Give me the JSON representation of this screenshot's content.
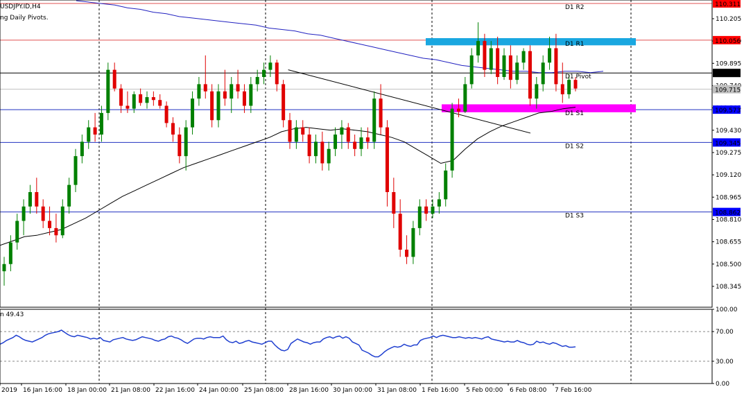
{
  "window": {
    "symbol_title": "USDJPY.ID,H4",
    "indicator_title": "ng Daily Pivots.",
    "rsi_title": "n 49.43"
  },
  "colors": {
    "background": "#ffffff",
    "bull": "#008000",
    "bear": "#e00000",
    "ma_long": "#2020c0",
    "ma_short": "#000000",
    "rsi": "#1f3fd0",
    "r_lines": "#e05050",
    "pivot_line": "#000000",
    "s_lines": "#2030c0",
    "zone_resistance": "#1aa7e0",
    "zone_support": "#ff00ff",
    "label_pivot_bg": "#000080",
    "label_r_bg": "#ff0000",
    "label_s_bg": "#0000ff"
  },
  "chart_data": [
    {
      "type": "candlestick",
      "title": "USDJPY.ID,H4",
      "ylim": [
        108.2,
        110.335
      ],
      "y_ticks": [
        "110.205",
        "110.050",
        "109.895",
        "109.740",
        "109.585",
        "109.430",
        "109.275",
        "109.120",
        "108.965",
        "108.810",
        "108.655",
        "108.500",
        "108.345"
      ],
      "x_labels": [
        "2019",
        "16 Jan 16:00",
        "18 Jan 00:00",
        "21 Jan 08:00",
        "22 Jan 16:00",
        "24 Jan 00:00",
        "25 Jan 08:00",
        "28 Jan 16:00",
        "30 Jan 00:00",
        "31 Jan 08:00",
        "1 Feb 16:00",
        "5 Feb 00:00",
        "6 Feb 08:00",
        "7 Feb 16:00"
      ],
      "levels": [
        {
          "name": "D1 R2",
          "value": 110.311,
          "price_label": "110.311",
          "kind": "r"
        },
        {
          "name": "D1 R1",
          "value": 110.056,
          "price_label": "110.056",
          "kind": "r"
        },
        {
          "name": "D1 Pivot",
          "value": 109.828,
          "price_label": "109.828",
          "kind": "pivot"
        },
        {
          "name": "D1 S1",
          "value": 109.573,
          "price_label": "109.573",
          "kind": "s"
        },
        {
          "name": "D1 S2",
          "value": 109.345,
          "price_label": "109.345",
          "kind": "s"
        },
        {
          "name": "D1 S3",
          "value": 108.862,
          "price_label": "108.862",
          "kind": "s"
        }
      ],
      "current_price": {
        "value": 109.715,
        "label": "109.715"
      },
      "zones": [
        {
          "kind": "resistance",
          "from": 110.02,
          "to": 110.07
        },
        {
          "kind": "support",
          "from": 109.555,
          "to": 109.61
        }
      ],
      "candles": [
        {
          "o": 108.45,
          "h": 108.55,
          "l": 108.35,
          "c": 108.5
        },
        {
          "o": 108.5,
          "h": 108.7,
          "l": 108.45,
          "c": 108.65
        },
        {
          "o": 108.65,
          "h": 108.85,
          "l": 108.6,
          "c": 108.8
        },
        {
          "o": 108.8,
          "h": 108.95,
          "l": 108.7,
          "c": 108.9
        },
        {
          "o": 108.9,
          "h": 109.05,
          "l": 108.85,
          "c": 109.0
        },
        {
          "o": 109.0,
          "h": 109.1,
          "l": 108.85,
          "c": 108.9
        },
        {
          "o": 108.9,
          "h": 108.95,
          "l": 108.75,
          "c": 108.8
        },
        {
          "o": 108.8,
          "h": 108.9,
          "l": 108.7,
          "c": 108.75
        },
        {
          "o": 108.75,
          "h": 108.85,
          "l": 108.65,
          "c": 108.7
        },
        {
          "o": 108.7,
          "h": 108.95,
          "l": 108.68,
          "c": 108.9
        },
        {
          "o": 108.9,
          "h": 109.1,
          "l": 108.85,
          "c": 109.05
        },
        {
          "o": 109.05,
          "h": 109.3,
          "l": 109.0,
          "c": 109.25
        },
        {
          "o": 109.25,
          "h": 109.4,
          "l": 109.2,
          "c": 109.35
        },
        {
          "o": 109.35,
          "h": 109.5,
          "l": 109.3,
          "c": 109.45
        },
        {
          "o": 109.45,
          "h": 109.55,
          "l": 109.35,
          "c": 109.4
        },
        {
          "o": 109.4,
          "h": 109.6,
          "l": 109.35,
          "c": 109.55
        },
        {
          "o": 109.55,
          "h": 109.9,
          "l": 109.5,
          "c": 109.85
        },
        {
          "o": 109.85,
          "h": 109.9,
          "l": 109.7,
          "c": 109.72
        },
        {
          "o": 109.72,
          "h": 109.75,
          "l": 109.55,
          "c": 109.6
        },
        {
          "o": 109.6,
          "h": 109.7,
          "l": 109.55,
          "c": 109.58
        },
        {
          "o": 109.58,
          "h": 109.7,
          "l": 109.55,
          "c": 109.68
        },
        {
          "o": 109.68,
          "h": 109.72,
          "l": 109.6,
          "c": 109.62
        },
        {
          "o": 109.62,
          "h": 109.7,
          "l": 109.58,
          "c": 109.66
        },
        {
          "o": 109.66,
          "h": 109.7,
          "l": 109.6,
          "c": 109.64
        },
        {
          "o": 109.64,
          "h": 109.68,
          "l": 109.58,
          "c": 109.6
        },
        {
          "o": 109.6,
          "h": 109.63,
          "l": 109.45,
          "c": 109.48
        },
        {
          "o": 109.48,
          "h": 109.52,
          "l": 109.35,
          "c": 109.4
        },
        {
          "o": 109.4,
          "h": 109.45,
          "l": 109.2,
          "c": 109.25
        },
        {
          "o": 109.25,
          "h": 109.5,
          "l": 109.15,
          "c": 109.45
        },
        {
          "o": 109.45,
          "h": 109.7,
          "l": 109.4,
          "c": 109.65
        },
        {
          "o": 109.65,
          "h": 109.8,
          "l": 109.6,
          "c": 109.75
        },
        {
          "o": 109.75,
          "h": 109.95,
          "l": 109.65,
          "c": 109.7
        },
        {
          "o": 109.7,
          "h": 109.75,
          "l": 109.45,
          "c": 109.5
        },
        {
          "o": 109.5,
          "h": 109.75,
          "l": 109.45,
          "c": 109.7
        },
        {
          "o": 109.7,
          "h": 109.85,
          "l": 109.6,
          "c": 109.65
        },
        {
          "o": 109.65,
          "h": 109.8,
          "l": 109.55,
          "c": 109.75
        },
        {
          "o": 109.75,
          "h": 109.85,
          "l": 109.65,
          "c": 109.7
        },
        {
          "o": 109.7,
          "h": 109.75,
          "l": 109.55,
          "c": 109.6
        },
        {
          "o": 109.6,
          "h": 109.8,
          "l": 109.55,
          "c": 109.75
        },
        {
          "o": 109.75,
          "h": 109.85,
          "l": 109.7,
          "c": 109.8
        },
        {
          "o": 109.8,
          "h": 109.9,
          "l": 109.75,
          "c": 109.85
        },
        {
          "o": 109.85,
          "h": 109.95,
          "l": 109.8,
          "c": 109.9
        },
        {
          "o": 109.9,
          "h": 109.92,
          "l": 109.7,
          "c": 109.75
        },
        {
          "o": 109.75,
          "h": 109.78,
          "l": 109.45,
          "c": 109.5
        },
        {
          "o": 109.5,
          "h": 109.55,
          "l": 109.3,
          "c": 109.35
        },
        {
          "o": 109.35,
          "h": 109.5,
          "l": 109.3,
          "c": 109.45
        },
        {
          "o": 109.45,
          "h": 109.5,
          "l": 109.35,
          "c": 109.4
        },
        {
          "o": 109.4,
          "h": 109.45,
          "l": 109.2,
          "c": 109.25
        },
        {
          "o": 109.25,
          "h": 109.4,
          "l": 109.2,
          "c": 109.35
        },
        {
          "o": 109.35,
          "h": 109.42,
          "l": 109.15,
          "c": 109.2
        },
        {
          "o": 109.2,
          "h": 109.35,
          "l": 109.15,
          "c": 109.3
        },
        {
          "o": 109.3,
          "h": 109.45,
          "l": 109.25,
          "c": 109.4
        },
        {
          "o": 109.4,
          "h": 109.5,
          "l": 109.3,
          "c": 109.45
        },
        {
          "o": 109.45,
          "h": 109.48,
          "l": 109.3,
          "c": 109.35
        },
        {
          "o": 109.35,
          "h": 109.4,
          "l": 109.25,
          "c": 109.3
        },
        {
          "o": 109.3,
          "h": 109.45,
          "l": 109.25,
          "c": 109.38
        },
        {
          "o": 109.38,
          "h": 109.45,
          "l": 109.3,
          "c": 109.35
        },
        {
          "o": 109.35,
          "h": 109.7,
          "l": 109.3,
          "c": 109.65
        },
        {
          "o": 109.65,
          "h": 109.75,
          "l": 109.4,
          "c": 109.45
        },
        {
          "o": 109.45,
          "h": 109.5,
          "l": 108.9,
          "c": 109.0
        },
        {
          "o": 109.0,
          "h": 109.1,
          "l": 108.75,
          "c": 108.85
        },
        {
          "o": 108.85,
          "h": 108.95,
          "l": 108.55,
          "c": 108.6
        },
        {
          "o": 108.6,
          "h": 108.7,
          "l": 108.5,
          "c": 108.55
        },
        {
          "o": 108.55,
          "h": 108.8,
          "l": 108.5,
          "c": 108.75
        },
        {
          "o": 108.75,
          "h": 108.95,
          "l": 108.7,
          "c": 108.9
        },
        {
          "o": 108.9,
          "h": 108.95,
          "l": 108.8,
          "c": 108.85
        },
        {
          "o": 108.85,
          "h": 108.95,
          "l": 108.82,
          "c": 108.9
        },
        {
          "o": 108.9,
          "h": 109.0,
          "l": 108.85,
          "c": 108.95
        },
        {
          "o": 108.95,
          "h": 109.2,
          "l": 108.9,
          "c": 109.15
        },
        {
          "o": 109.15,
          "h": 109.62,
          "l": 109.1,
          "c": 109.58
        },
        {
          "o": 109.58,
          "h": 109.65,
          "l": 109.52,
          "c": 109.56
        },
        {
          "o": 109.56,
          "h": 109.8,
          "l": 109.55,
          "c": 109.75
        },
        {
          "o": 109.75,
          "h": 110.0,
          "l": 109.72,
          "c": 109.95
        },
        {
          "o": 109.95,
          "h": 110.18,
          "l": 109.9,
          "c": 110.05
        },
        {
          "o": 110.05,
          "h": 110.1,
          "l": 109.8,
          "c": 109.85
        },
        {
          "o": 109.85,
          "h": 110.05,
          "l": 109.82,
          "c": 110.0
        },
        {
          "o": 110.0,
          "h": 110.08,
          "l": 109.75,
          "c": 109.8
        },
        {
          "o": 109.8,
          "h": 110.0,
          "l": 109.78,
          "c": 109.95
        },
        {
          "o": 109.95,
          "h": 110.02,
          "l": 109.72,
          "c": 109.78
        },
        {
          "o": 109.78,
          "h": 109.95,
          "l": 109.75,
          "c": 109.9
        },
        {
          "o": 109.9,
          "h": 110.0,
          "l": 109.85,
          "c": 109.98
        },
        {
          "o": 109.98,
          "h": 110.02,
          "l": 109.6,
          "c": 109.65
        },
        {
          "o": 109.65,
          "h": 109.8,
          "l": 109.58,
          "c": 109.75
        },
        {
          "o": 109.75,
          "h": 109.95,
          "l": 109.7,
          "c": 109.9
        },
        {
          "o": 109.9,
          "h": 110.08,
          "l": 109.85,
          "c": 110.0
        },
        {
          "o": 110.0,
          "h": 110.1,
          "l": 109.7,
          "c": 109.75
        },
        {
          "o": 109.75,
          "h": 109.9,
          "l": 109.62,
          "c": 109.68
        },
        {
          "o": 109.68,
          "h": 109.82,
          "l": 109.65,
          "c": 109.78
        },
        {
          "o": 109.78,
          "h": 109.8,
          "l": 109.7,
          "c": 109.72
        }
      ],
      "ma_long": [
        110.33,
        110.32,
        110.31,
        110.3,
        110.28,
        110.27,
        110.25,
        110.24,
        110.22,
        110.21,
        110.2,
        110.19,
        110.18,
        110.17,
        110.16,
        110.14,
        110.13,
        110.12,
        110.1,
        110.09,
        110.07,
        110.05,
        110.03,
        110.01,
        109.99,
        109.97,
        109.95,
        109.93,
        109.92,
        109.9,
        109.88,
        109.87,
        109.86,
        109.85,
        109.84,
        109.84,
        109.83,
        109.83,
        109.84,
        109.84,
        109.83,
        109.84
      ],
      "ma_short": [
        108.63,
        108.66,
        108.69,
        108.7,
        108.72,
        108.74,
        108.78,
        108.82,
        108.87,
        108.92,
        108.97,
        109.01,
        109.05,
        109.09,
        109.13,
        109.17,
        109.2,
        109.23,
        109.26,
        109.29,
        109.32,
        109.35,
        109.38,
        109.42,
        109.44,
        109.45,
        109.44,
        109.43,
        109.44,
        109.43,
        109.42,
        109.4,
        109.38,
        109.35,
        109.3,
        109.25,
        109.2,
        109.22,
        109.3,
        109.37,
        109.42,
        109.46,
        109.49,
        109.52,
        109.55,
        109.56,
        109.58,
        109.59
      ],
      "trendline": {
        "from": [
          17,
          109.85
        ],
        "to": [
          101,
          109.41
        ]
      }
    },
    {
      "type": "line",
      "title": "n 49.43",
      "ylim": [
        0,
        100
      ],
      "y_ticks": [
        "100.00",
        "70.00",
        "30.00",
        "0.00"
      ],
      "levels": [
        70,
        30
      ],
      "values": [
        53,
        55,
        58,
        60,
        62,
        65,
        63,
        60,
        58,
        57,
        56,
        58,
        60,
        62,
        65,
        67,
        68,
        69,
        70,
        72,
        69,
        66,
        64,
        63,
        65,
        64,
        63,
        62,
        60,
        61,
        60,
        62,
        58,
        57,
        56,
        59,
        60,
        61,
        62,
        60,
        59,
        58,
        59,
        61,
        63,
        62,
        61,
        60,
        58,
        57,
        59,
        60,
        63,
        64,
        62,
        61,
        59,
        56,
        54,
        57,
        60,
        61,
        61,
        60,
        62,
        63,
        62,
        62,
        62,
        64,
        59,
        56,
        55,
        57,
        54,
        55,
        57,
        58,
        56,
        55,
        54,
        53,
        55,
        57,
        57,
        52,
        48,
        45,
        44,
        46,
        54,
        57,
        60,
        58,
        56,
        55,
        53,
        55,
        56,
        56,
        60,
        62,
        63,
        61,
        63,
        64,
        61,
        63,
        61,
        56,
        54,
        52,
        45,
        43,
        41,
        38,
        36,
        36,
        39,
        43,
        46,
        48,
        50,
        49,
        50,
        53,
        51,
        50,
        52,
        52,
        58,
        60,
        61,
        62,
        64,
        62,
        64,
        65,
        64,
        63,
        62,
        62,
        63,
        62,
        61,
        62,
        61,
        62,
        61,
        60,
        62,
        63,
        60,
        59,
        58,
        57,
        56,
        57,
        56,
        56,
        58,
        56,
        55,
        53,
        52,
        53,
        57,
        55,
        56,
        54,
        53,
        55,
        54,
        52,
        50,
        51,
        49,
        49,
        49.43
      ]
    }
  ]
}
